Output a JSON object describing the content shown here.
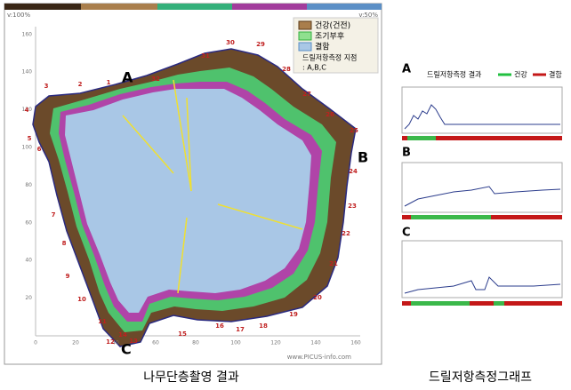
{
  "tomogram": {
    "scale_left": "v:100%",
    "scale_right": "v:50%",
    "legend": [
      "건강(건전)",
      "조기부후",
      "결함"
    ],
    "drill_note": [
      "드릴저항측정 지점",
      ": A,B,C"
    ],
    "points": [
      "A",
      "B",
      "C"
    ],
    "sensors": [
      "1",
      "2",
      "3",
      "4",
      "5",
      "6",
      "7",
      "8",
      "9",
      "10",
      "11",
      "12",
      "13",
      "14",
      "15",
      "16",
      "17",
      "18",
      "19",
      "20",
      "21",
      "22",
      "23",
      "24",
      "25",
      "26",
      "27",
      "28",
      "29",
      "30",
      "31",
      "32"
    ],
    "xticks": [
      0,
      20,
      40,
      60,
      80,
      100,
      120,
      140,
      160
    ],
    "yticks": [
      20,
      40,
      60,
      80,
      100,
      120,
      140,
      160
    ],
    "url": "www.PICUS-info.com",
    "caption": "나무단층촬영 결과"
  },
  "drill": {
    "labels": [
      "A",
      "B",
      "C"
    ],
    "title": "드릴저항측정 결과",
    "legend": [
      "건강",
      "결함"
    ],
    "caption": "드릴저항측정그래프"
  }
}
